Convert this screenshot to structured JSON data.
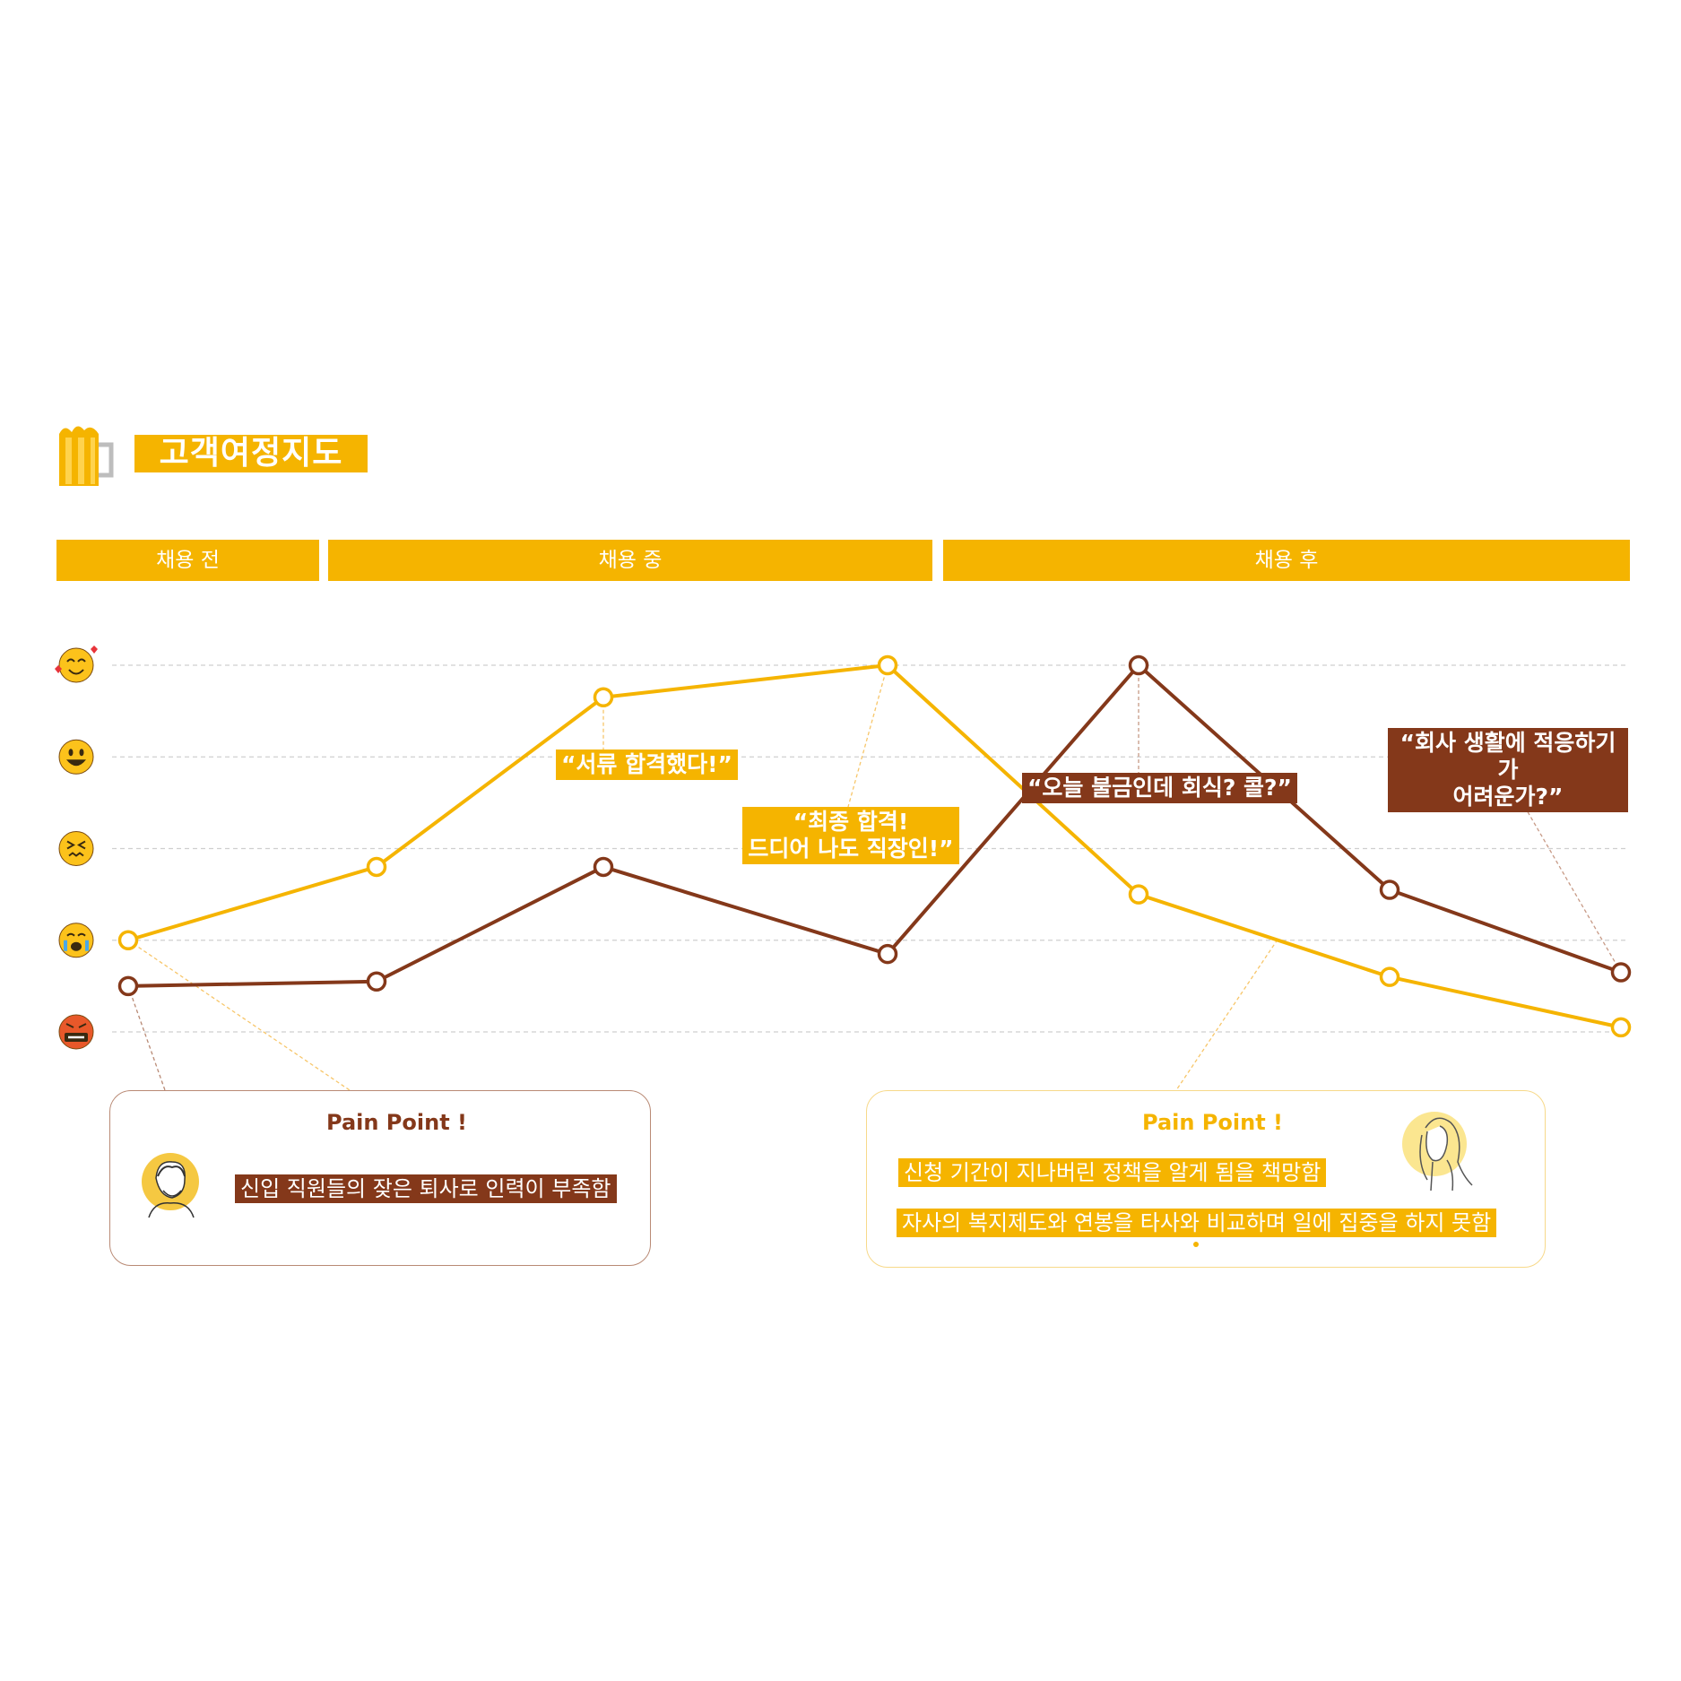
{
  "header": {
    "title": "고객여정지도",
    "icon": "beer-mug-icon"
  },
  "phases": [
    {
      "label": "채용 전"
    },
    {
      "label": "채용 중"
    },
    {
      "label": "채용 후"
    }
  ],
  "emotion_scale": [
    "smiling-face-with-hearts-icon",
    "grinning-face-icon",
    "confounded-face-icon",
    "crying-face-icon",
    "swearing-face-icon"
  ],
  "chart_data": {
    "type": "line",
    "title": "",
    "xlabel": "",
    "ylabel": "",
    "x": [
      1,
      2,
      3,
      4,
      5,
      6,
      7
    ],
    "ylim": [
      1,
      5
    ],
    "grid": true,
    "series": [
      {
        "color": "#f5b400",
        "values": [
          2.0,
          2.8,
          4.65,
          5.0,
          2.5,
          1.6,
          1.05
        ]
      },
      {
        "color": "#84381a",
        "values": [
          1.5,
          1.55,
          2.8,
          1.85,
          5.0,
          2.55,
          1.65
        ]
      }
    ],
    "annotations": [
      {
        "text": "“서류 합격했다!”",
        "style": "yellow"
      },
      {
        "text": "“최종 합격!\n드디어 나도 직장인!”",
        "style": "yellow"
      },
      {
        "text": "“오늘 불금인데 회식? 콜?”",
        "style": "brown"
      },
      {
        "text": "“회사 생활에 적응하기가\n어려운가?”",
        "style": "brown"
      }
    ]
  },
  "pain_points": [
    {
      "title": "Pain Point !",
      "items": [
        "신입 직원들의 잦은 퇴사로 인력이 부족함"
      ],
      "color": "#84381a"
    },
    {
      "title": "Pain Point !",
      "items": [
        "신청 기간이 지나버린 정책을 알게 됨을 책망함",
        "자사의 복지제도와 연봉을 타사와 비교하며 일에 집중을 하지 못함"
      ],
      "color": "#f5b400"
    }
  ]
}
